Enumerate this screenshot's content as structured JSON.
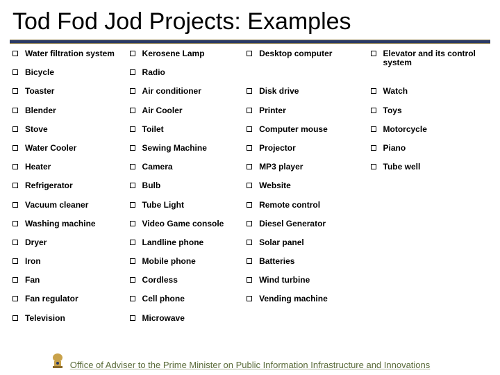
{
  "title": "Tod Fod Jod Projects: Examples",
  "colors": {
    "title_color": "#000000",
    "rule_color": "#2a3a66",
    "rule_border": "#8a7a4a",
    "footer_color": "#5a6b3a",
    "background": "#ffffff",
    "bullet_border": "#000000",
    "item_color": "#000000"
  },
  "typography": {
    "title_fontsize": 34,
    "item_fontsize": 12,
    "item_fontweight": 700,
    "footer_fontsize": 13
  },
  "columns": [
    [
      "Water filtration system",
      "Bicycle",
      "Toaster",
      "Blender",
      "Stove",
      "Water Cooler",
      "Heater",
      "Refrigerator",
      "Vacuum cleaner",
      "Washing machine",
      "Dryer",
      "Iron",
      "Fan",
      "Fan regulator",
      "Television"
    ],
    [
      "Kerosene Lamp",
      "Radio",
      "Air conditioner",
      "Air Cooler",
      "Toilet",
      "Sewing Machine",
      "Camera",
      "Bulb",
      "Tube Light",
      "Video Game console",
      "Landline phone",
      "Mobile phone",
      "Cordless",
      "Cell phone",
      "Microwave"
    ],
    [
      "Desktop computer",
      "Disk drive",
      "Printer",
      "Computer mouse",
      "Projector",
      "MP3 player",
      "Website",
      "Remote control",
      "Diesel Generator",
      "Solar panel",
      "Batteries",
      "Wind turbine",
      "Vending machine"
    ],
    [
      "Elevator and its control system",
      "Watch",
      "Toys",
      "Motorcycle",
      "Piano",
      "Tube well"
    ]
  ],
  "column_row_heights": [
    [
      27.2,
      27.2,
      27.2,
      27.2,
      27.2,
      27.2,
      27.2,
      27.2,
      27.2,
      27.2,
      27.2,
      27.2,
      27.2,
      27.2,
      27.2
    ],
    [
      27.2,
      27.2,
      27.2,
      27.2,
      27.2,
      27.2,
      27.2,
      27.2,
      27.2,
      27.2,
      27.2,
      27.2,
      27.2,
      27.2,
      27.2
    ],
    [
      54.4,
      27.2,
      27.2,
      27.2,
      27.2,
      27.2,
      27.2,
      27.2,
      27.2,
      27.2,
      27.2,
      27.2,
      54.4
    ],
    [
      54.4,
      27.2,
      27.2,
      27.2,
      27.2,
      27.2
    ]
  ],
  "footer": "Office of Adviser to the Prime Minister on Public Information Infrastructure and Innovations",
  "emblem_name": "india-emblem"
}
